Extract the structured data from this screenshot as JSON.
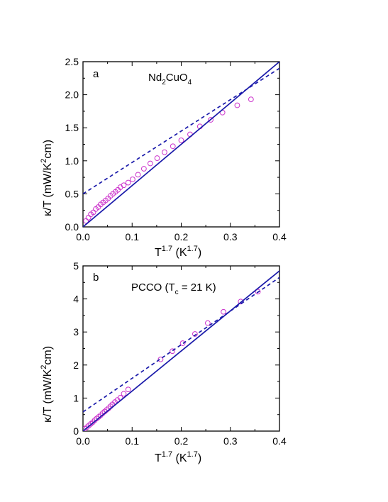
{
  "chart_data": [
    {
      "type": "scatter",
      "panel_letter": "a",
      "annotation": {
        "main": "Nd",
        "sub1": "2",
        "mid": "CuO",
        "sub2": "4"
      },
      "xlabel": {
        "base": "T",
        "sup": "1.7",
        "unit_open": " (K",
        "unit_sup": "1.7",
        "unit_close": ")"
      },
      "ylabel": {
        "pre": "κ/T  (mW/K",
        "sup": "2",
        "post": "cm)"
      },
      "xlim": [
        0,
        0.4
      ],
      "ylim": [
        0,
        2.5
      ],
      "xticks": [
        "0.0",
        "0.1",
        "0.2",
        "0.3",
        "0.4"
      ],
      "xtick_values": [
        0,
        0.1,
        0.2,
        0.3,
        0.4
      ],
      "yticks": [
        "0.0",
        "0.5",
        "1.0",
        "1.5",
        "2.0",
        "2.5"
      ],
      "ytick_values": [
        0,
        0.5,
        1.0,
        1.5,
        2.0,
        2.5
      ],
      "series": [
        {
          "style": "markers",
          "marker": "open-circle",
          "color": "#cc33cc",
          "x": [
            0.006,
            0.011,
            0.016,
            0.021,
            0.026,
            0.031,
            0.036,
            0.041,
            0.046,
            0.051,
            0.056,
            0.061,
            0.066,
            0.071,
            0.076,
            0.083,
            0.092,
            0.101,
            0.112,
            0.124,
            0.137,
            0.151,
            0.166,
            0.183,
            0.2,
            0.218,
            0.238,
            0.26,
            0.284,
            0.314,
            0.342
          ],
          "y": [
            0.09,
            0.14,
            0.19,
            0.22,
            0.27,
            0.3,
            0.34,
            0.37,
            0.4,
            0.43,
            0.47,
            0.5,
            0.53,
            0.56,
            0.6,
            0.63,
            0.67,
            0.72,
            0.79,
            0.88,
            0.96,
            1.04,
            1.13,
            1.22,
            1.31,
            1.4,
            1.52,
            1.62,
            1.73,
            1.84,
            1.93
          ]
        },
        {
          "style": "line",
          "color": "#1a1aaa",
          "dash": "solid",
          "x": [
            0,
            0.4
          ],
          "y": [
            0,
            2.5
          ]
        },
        {
          "style": "line",
          "color": "#1a1aaa",
          "dash": "dashed",
          "x": [
            0,
            0.4
          ],
          "y": [
            0.5,
            2.4
          ]
        }
      ]
    },
    {
      "type": "scatter",
      "panel_letter": "b",
      "annotation": {
        "pre": "PCCO (T",
        "sub": "c",
        "post": " = 21 K)"
      },
      "xlabel": {
        "base": "T",
        "sup": "1.7",
        "unit_open": " (K",
        "unit_sup": "1.7",
        "unit_close": ")"
      },
      "ylabel": {
        "pre": "κ/T  (mW/K",
        "sup": "2",
        "post": "cm)"
      },
      "xlim": [
        0,
        0.4
      ],
      "ylim": [
        0,
        5
      ],
      "xticks": [
        "0.0",
        "0.1",
        "0.2",
        "0.3",
        "0.4"
      ],
      "xtick_values": [
        0,
        0.1,
        0.2,
        0.3,
        0.4
      ],
      "yticks": [
        "0",
        "1",
        "2",
        "3",
        "4",
        "5"
      ],
      "ytick_values": [
        0,
        1,
        2,
        3,
        4,
        5
      ],
      "series": [
        {
          "style": "markers",
          "marker": "open-circle",
          "color": "#cc33cc",
          "x": [
            0.004,
            0.008,
            0.012,
            0.016,
            0.02,
            0.024,
            0.028,
            0.032,
            0.036,
            0.04,
            0.044,
            0.048,
            0.052,
            0.056,
            0.06,
            0.065,
            0.07,
            0.076,
            0.083,
            0.092,
            0.158,
            0.182,
            0.203,
            0.228,
            0.254,
            0.286,
            0.321,
            0.356
          ],
          "y": [
            0.07,
            0.12,
            0.17,
            0.22,
            0.27,
            0.33,
            0.38,
            0.43,
            0.48,
            0.54,
            0.59,
            0.64,
            0.69,
            0.75,
            0.81,
            0.88,
            0.94,
            1.01,
            1.13,
            1.26,
            2.17,
            2.42,
            2.66,
            2.94,
            3.27,
            3.61,
            3.92,
            4.22
          ]
        },
        {
          "style": "line",
          "color": "#1a1aaa",
          "dash": "solid",
          "x": [
            0,
            0.4
          ],
          "y": [
            0,
            4.85
          ]
        },
        {
          "style": "line",
          "color": "#1a1aaa",
          "dash": "dashed",
          "x": [
            0,
            0.4
          ],
          "y": [
            0.58,
            4.65
          ]
        }
      ]
    }
  ]
}
